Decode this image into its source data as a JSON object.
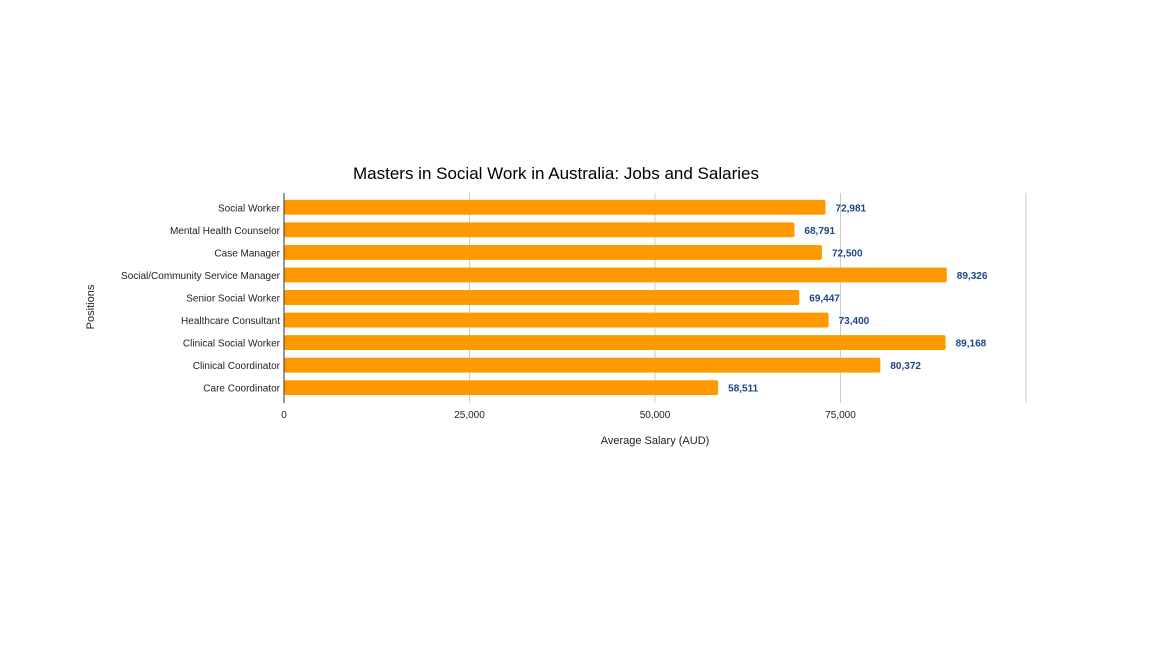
{
  "chart_data": {
    "type": "bar",
    "orientation": "horizontal",
    "title": "Masters in Social Work in Australia: Jobs and Salaries",
    "xlabel": "Average Salary (AUD)",
    "ylabel": "Positions",
    "categories": [
      "Social Worker",
      "Mental Health Counselor",
      "Case Manager",
      "Social/Community Service Manager",
      "Senior Social Worker",
      "Healthcare Consultant",
      "Clinical Social Worker",
      "Clinical Coordinator",
      "Care Coordinator"
    ],
    "values": [
      72981,
      68791,
      72500,
      89326,
      69447,
      73400,
      89168,
      80372,
      58511
    ],
    "value_labels": [
      "72,981",
      "68,791",
      "72,500",
      "89,326",
      "69,447",
      "73,400",
      "89,168",
      "80,372",
      "58,511"
    ],
    "xlim": [
      0,
      100000
    ],
    "xticks": [
      0,
      25000,
      50000,
      75000
    ],
    "xtick_labels": [
      "0",
      "25,000",
      "50,000",
      "75,000"
    ],
    "grid": "vertical",
    "legend": "none",
    "bar_color": "#ff9900",
    "label_color": "#1c4587",
    "grid_color": "#cccccc",
    "axis_color": "#333333"
  }
}
